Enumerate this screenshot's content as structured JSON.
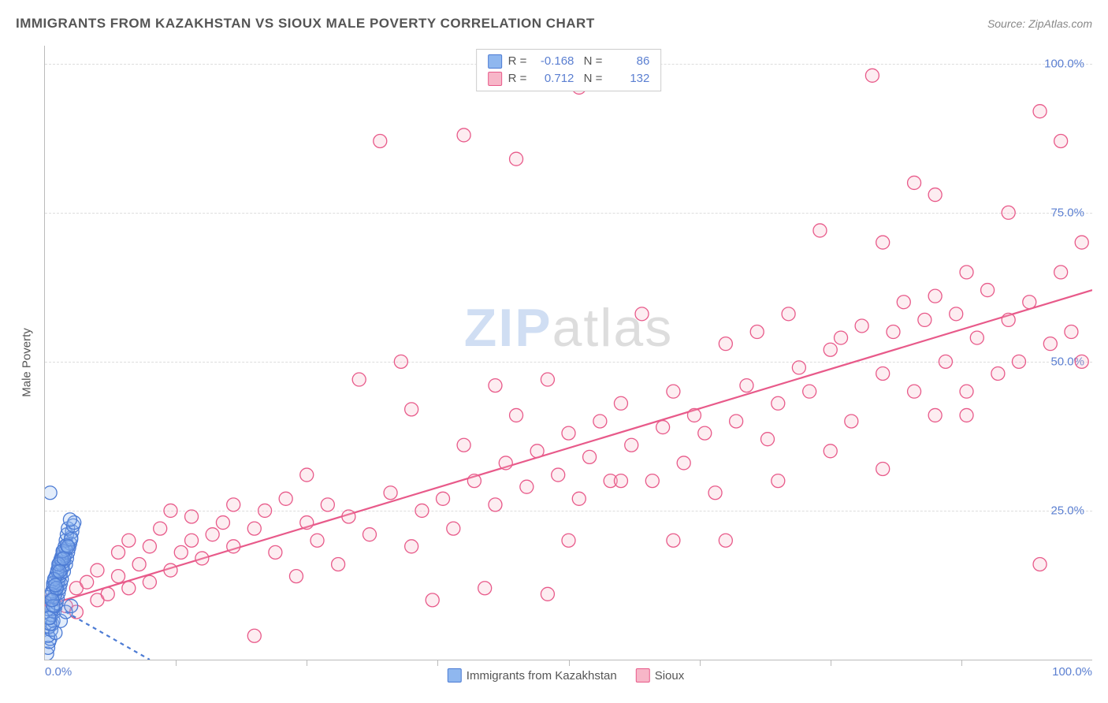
{
  "title": "IMMIGRANTS FROM KAZAKHSTAN VS SIOUX MALE POVERTY CORRELATION CHART",
  "source_label": "Source:",
  "source_name": "ZipAtlas.com",
  "y_axis_label": "Male Poverty",
  "watermark_a": "ZIP",
  "watermark_b": "atlas",
  "chart": {
    "type": "scatter",
    "xlim": [
      0,
      100
    ],
    "ylim": [
      0,
      103
    ],
    "x_ticks": [
      0,
      100
    ],
    "x_tick_labels": [
      "0.0%",
      "100.0%"
    ],
    "x_minor_ticks": [
      12.5,
      25,
      37.5,
      50,
      62.5,
      75,
      87.5
    ],
    "y_gridlines": [
      25,
      50,
      75,
      100
    ],
    "y_tick_labels": [
      "25.0%",
      "50.0%",
      "75.0%",
      "100.0%"
    ],
    "background_color": "#ffffff",
    "grid_color": "#dddddd",
    "axis_color": "#bbbbbb",
    "tick_label_color": "#5b7fd1",
    "marker_radius": 8.5,
    "series": [
      {
        "name": "Immigrants from Kazakhstan",
        "color_fill": "#8fb7ef",
        "color_stroke": "#4c7bd4",
        "R": "-0.168",
        "N": "86",
        "regression": {
          "x1": 0,
          "y1": 10,
          "x2": 10,
          "y2": 0,
          "dash": "5,5"
        },
        "points": [
          [
            0.2,
            1
          ],
          [
            0.3,
            2
          ],
          [
            0.4,
            3
          ],
          [
            0.5,
            3.5
          ],
          [
            0.3,
            4
          ],
          [
            0.6,
            5
          ],
          [
            0.4,
            5.5
          ],
          [
            0.7,
            6
          ],
          [
            0.8,
            6.5
          ],
          [
            0.5,
            7
          ],
          [
            0.6,
            7.5
          ],
          [
            0.9,
            8
          ],
          [
            0.7,
            8.5
          ],
          [
            1.0,
            9
          ],
          [
            0.8,
            9.2
          ],
          [
            1.1,
            9.5
          ],
          [
            0.6,
            10
          ],
          [
            1.2,
            10.3
          ],
          [
            0.9,
            10.6
          ],
          [
            1.0,
            11
          ],
          [
            1.3,
            11.2
          ],
          [
            0.7,
            11.5
          ],
          [
            1.1,
            11.8
          ],
          [
            1.4,
            12
          ],
          [
            0.8,
            12.3
          ],
          [
            1.2,
            12.5
          ],
          [
            1.5,
            12.8
          ],
          [
            0.9,
            13
          ],
          [
            1.3,
            13.3
          ],
          [
            1.6,
            13.5
          ],
          [
            1.0,
            13.8
          ],
          [
            1.4,
            14
          ],
          [
            1.1,
            14.3
          ],
          [
            1.5,
            14.5
          ],
          [
            1.8,
            14.8
          ],
          [
            1.2,
            15
          ],
          [
            1.6,
            15.2
          ],
          [
            1.3,
            15.5
          ],
          [
            1.7,
            15.8
          ],
          [
            2.0,
            16
          ],
          [
            1.4,
            16.3
          ],
          [
            1.8,
            16.5
          ],
          [
            1.5,
            16.8
          ],
          [
            2.1,
            17
          ],
          [
            1.6,
            17.3
          ],
          [
            1.9,
            17.5
          ],
          [
            1.7,
            17.8
          ],
          [
            2.2,
            18
          ],
          [
            1.8,
            18.3
          ],
          [
            2.0,
            18.5
          ],
          [
            2.3,
            18.8
          ],
          [
            1.9,
            19
          ],
          [
            2.4,
            19.5
          ],
          [
            2.0,
            20
          ],
          [
            2.5,
            20.5
          ],
          [
            2.1,
            21
          ],
          [
            2.6,
            21.5
          ],
          [
            2.2,
            22
          ],
          [
            2.7,
            22.5
          ],
          [
            2.8,
            23
          ],
          [
            2.4,
            23.5
          ],
          [
            0.5,
            28
          ],
          [
            1.0,
            4.5
          ],
          [
            1.5,
            6.5
          ],
          [
            2.0,
            8
          ],
          [
            2.5,
            9
          ],
          [
            0.4,
            10.5
          ],
          [
            0.8,
            12.8
          ],
          [
            1.2,
            14.8
          ],
          [
            1.6,
            16.8
          ],
          [
            0.3,
            8.5
          ],
          [
            0.6,
            11
          ],
          [
            0.9,
            13.5
          ],
          [
            1.3,
            16
          ],
          [
            1.7,
            18.2
          ],
          [
            2.1,
            19.2
          ],
          [
            2.5,
            20.2
          ],
          [
            0.5,
            6
          ],
          [
            0.8,
            9
          ],
          [
            1.1,
            12
          ],
          [
            1.4,
            14.8
          ],
          [
            1.8,
            17
          ],
          [
            2.2,
            19
          ],
          [
            0.4,
            7
          ],
          [
            0.7,
            10
          ],
          [
            1.0,
            12.5
          ]
        ]
      },
      {
        "name": "Sioux",
        "color_fill": "#f7b6c8",
        "color_stroke": "#e85a8a",
        "R": "0.712",
        "N": "132",
        "regression": {
          "x1": 0,
          "y1": 9,
          "x2": 100,
          "y2": 62,
          "dash": ""
        },
        "points": [
          [
            0.5,
            10
          ],
          [
            1,
            11
          ],
          [
            2,
            9
          ],
          [
            3,
            12
          ],
          [
            3,
            8
          ],
          [
            4,
            13
          ],
          [
            5,
            10
          ],
          [
            5,
            15
          ],
          [
            6,
            11
          ],
          [
            7,
            14
          ],
          [
            7,
            18
          ],
          [
            8,
            12
          ],
          [
            8,
            20
          ],
          [
            9,
            16
          ],
          [
            10,
            13
          ],
          [
            10,
            19
          ],
          [
            11,
            22
          ],
          [
            12,
            15
          ],
          [
            12,
            25
          ],
          [
            13,
            18
          ],
          [
            14,
            20
          ],
          [
            14,
            24
          ],
          [
            15,
            17
          ],
          [
            16,
            21
          ],
          [
            17,
            23
          ],
          [
            18,
            19
          ],
          [
            18,
            26
          ],
          [
            20,
            22
          ],
          [
            20,
            4
          ],
          [
            21,
            25
          ],
          [
            22,
            18
          ],
          [
            23,
            27
          ],
          [
            24,
            14
          ],
          [
            25,
            23
          ],
          [
            25,
            31
          ],
          [
            26,
            20
          ],
          [
            27,
            26
          ],
          [
            28,
            16
          ],
          [
            29,
            24
          ],
          [
            30,
            47
          ],
          [
            31,
            21
          ],
          [
            32,
            87
          ],
          [
            33,
            28
          ],
          [
            34,
            50
          ],
          [
            35,
            19
          ],
          [
            36,
            25
          ],
          [
            37,
            10
          ],
          [
            38,
            27
          ],
          [
            39,
            22
          ],
          [
            40,
            88
          ],
          [
            41,
            30
          ],
          [
            42,
            12
          ],
          [
            43,
            26
          ],
          [
            43,
            46
          ],
          [
            44,
            33
          ],
          [
            45,
            84
          ],
          [
            46,
            29
          ],
          [
            47,
            35
          ],
          [
            48,
            47
          ],
          [
            48,
            11
          ],
          [
            49,
            31
          ],
          [
            50,
            38
          ],
          [
            51,
            27
          ],
          [
            51,
            96
          ],
          [
            52,
            34
          ],
          [
            53,
            40
          ],
          [
            54,
            30
          ],
          [
            55,
            43
          ],
          [
            56,
            36
          ],
          [
            57,
            58
          ],
          [
            58,
            30
          ],
          [
            59,
            39
          ],
          [
            60,
            45
          ],
          [
            61,
            33
          ],
          [
            62,
            41
          ],
          [
            63,
            38
          ],
          [
            64,
            28
          ],
          [
            65,
            53
          ],
          [
            66,
            40
          ],
          [
            67,
            46
          ],
          [
            68,
            55
          ],
          [
            69,
            37
          ],
          [
            70,
            43
          ],
          [
            71,
            58
          ],
          [
            72,
            49
          ],
          [
            73,
            45
          ],
          [
            74,
            72
          ],
          [
            75,
            52
          ],
          [
            76,
            54
          ],
          [
            77,
            40
          ],
          [
            78,
            56
          ],
          [
            79,
            98
          ],
          [
            80,
            48
          ],
          [
            80,
            70
          ],
          [
            81,
            55
          ],
          [
            82,
            60
          ],
          [
            83,
            45
          ],
          [
            83,
            80
          ],
          [
            84,
            57
          ],
          [
            85,
            41
          ],
          [
            85,
            78
          ],
          [
            86,
            50
          ],
          [
            87,
            58
          ],
          [
            88,
            65
          ],
          [
            88,
            45
          ],
          [
            89,
            54
          ],
          [
            90,
            62
          ],
          [
            91,
            48
          ],
          [
            92,
            57
          ],
          [
            92,
            75
          ],
          [
            93,
            50
          ],
          [
            94,
            60
          ],
          [
            95,
            16
          ],
          [
            95,
            92
          ],
          [
            96,
            53
          ],
          [
            97,
            65
          ],
          [
            97,
            87
          ],
          [
            98,
            55
          ],
          [
            99,
            70
          ],
          [
            99,
            50
          ],
          [
            65,
            20
          ],
          [
            70,
            30
          ],
          [
            75,
            35
          ],
          [
            80,
            32
          ],
          [
            85,
            61
          ],
          [
            88,
            41
          ],
          [
            60,
            20
          ],
          [
            55,
            30
          ],
          [
            50,
            20
          ],
          [
            45,
            41
          ],
          [
            40,
            36
          ],
          [
            35,
            42
          ]
        ]
      }
    ],
    "bottom_legend": [
      {
        "label": "Immigrants from Kazakhstan",
        "fill": "#8fb7ef",
        "stroke": "#4c7bd4"
      },
      {
        "label": "Sioux",
        "fill": "#f7b6c8",
        "stroke": "#e85a8a"
      }
    ]
  }
}
